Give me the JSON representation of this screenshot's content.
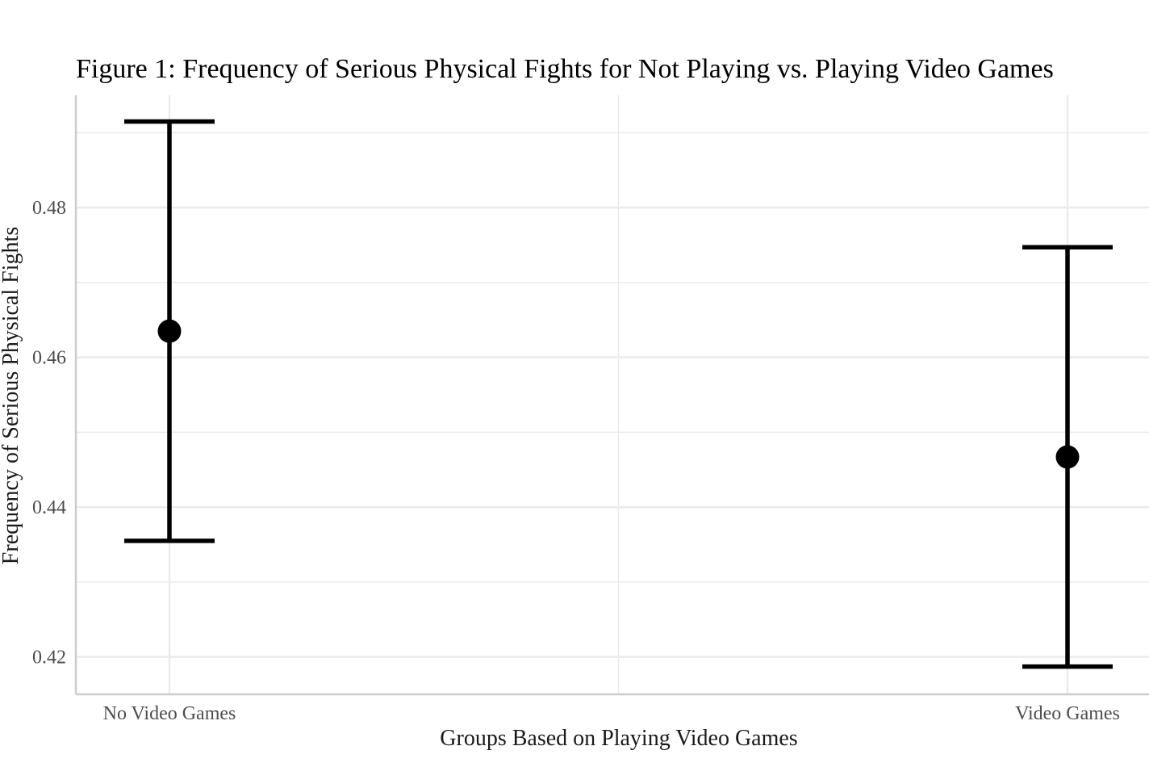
{
  "chart_data": {
    "type": "errorbar",
    "title": "Figure 1: Frequency of Serious Physical Fights for Not Playing vs. Playing Video Games",
    "xlabel": "Groups Based on Playing Video Games",
    "ylabel": "Frequency of Serious Physical Fights",
    "categories": [
      "No Video Games",
      "Video Games"
    ],
    "means": [
      0.4635,
      0.4467
    ],
    "lower": [
      0.4355,
      0.4187
    ],
    "upper": [
      0.4915,
      0.4747
    ],
    "y_ticks": [
      0.42,
      0.44,
      0.46,
      0.48
    ],
    "y_tick_labels": [
      "0.42",
      "0.44",
      "0.46",
      "0.48"
    ],
    "ylim": [
      0.415,
      0.495
    ],
    "grid": true,
    "colors": {
      "marks": "#000000",
      "grid": "#ebebeb",
      "axis": "#cccccc"
    }
  }
}
